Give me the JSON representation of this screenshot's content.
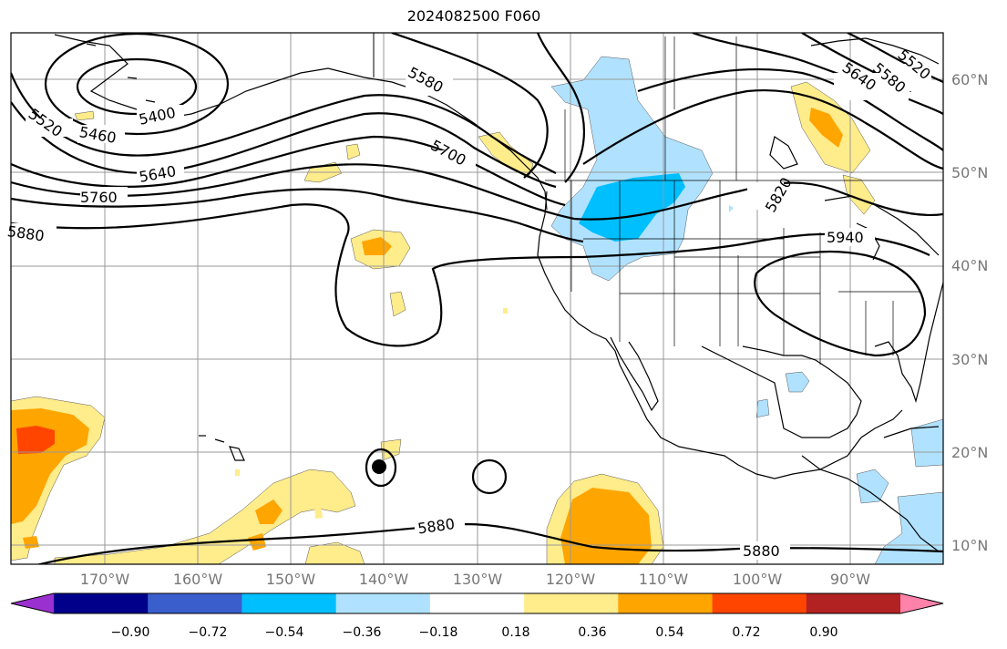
{
  "title": "2024082500 F060",
  "lat_labels": [
    "60°N",
    "50°N",
    "40°N",
    "30°N",
    "20°N",
    "10°N"
  ],
  "lon_labels": [
    "170°W",
    "160°W",
    "150°W",
    "140°W",
    "130°W",
    "120°W",
    "110°W",
    "100°W",
    "90°W"
  ],
  "contour_labels": [
    "5400",
    "5460",
    "5520",
    "5580",
    "5640",
    "5700",
    "5760",
    "5820",
    "5880",
    "5880",
    "5880",
    "5940",
    "5520",
    "5580",
    "5640"
  ],
  "colorbar": {
    "ticks": [
      "−0.90",
      "−0.72",
      "−0.54",
      "−0.36",
      "−0.18",
      "0.18",
      "0.36",
      "0.54",
      "0.72",
      "0.90"
    ],
    "colors": [
      "#9b30d0",
      "#00008b",
      "#3a5fcd",
      "#00bfff",
      "#b0e2ff",
      "#ffffff",
      "#ffec8b",
      "#ffa500",
      "#ff4500",
      "#b22222",
      "#ff82ab"
    ]
  },
  "colors": {
    "land_outline": "#000000",
    "grid": "#999999",
    "contour": "#000000"
  }
}
